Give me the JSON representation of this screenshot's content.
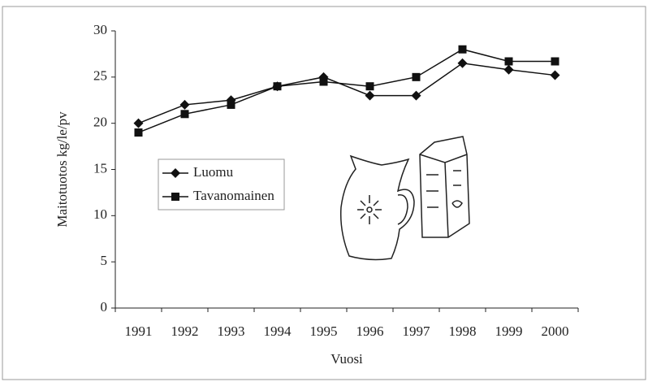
{
  "chart_data": {
    "type": "line",
    "x_label": "Vuosi",
    "y_label": "Maitotuotos kg/le/pv",
    "categories": [
      "1991",
      "1992",
      "1993",
      "1994",
      "1995",
      "1996",
      "1997",
      "1998",
      "1999",
      "2000"
    ],
    "series": [
      {
        "name": "Luomu",
        "color": "#111111",
        "marker": "diamond",
        "values": [
          20,
          22,
          22.5,
          24,
          25,
          23,
          23,
          26.5,
          25.8,
          25.2
        ]
      },
      {
        "name": "Tavanomainen",
        "color": "#111111",
        "marker": "square",
        "values": [
          19,
          21,
          22,
          24,
          24.5,
          24,
          25,
          28,
          26.7,
          26.7
        ]
      }
    ],
    "ylim": [
      0,
      30
    ],
    "yticks": [
      0,
      5,
      10,
      15,
      20,
      25,
      30
    ]
  }
}
